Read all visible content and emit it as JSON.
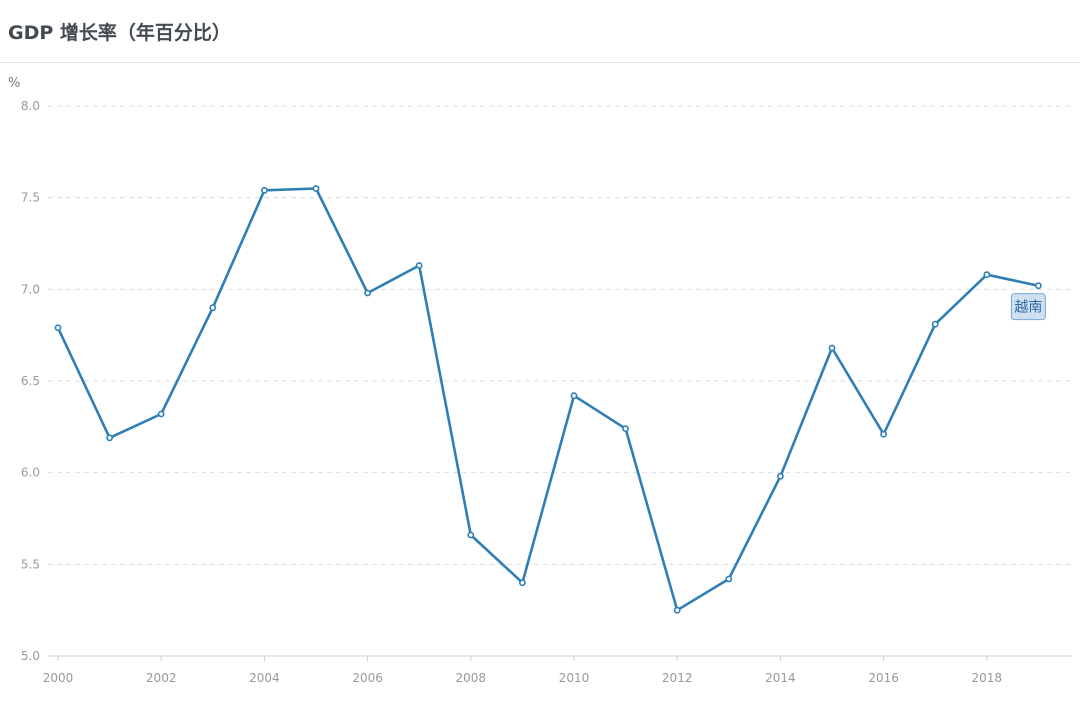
{
  "header": {
    "title": "GDP 增长率（年百分比）"
  },
  "chart_data": {
    "type": "line",
    "title": "GDP 增长率（年百分比）",
    "ylabel": "%",
    "xlabel": "",
    "ylim": [
      5.0,
      8.0
    ],
    "yticks": [
      "8.0",
      "7.5",
      "7.0",
      "6.5",
      "6.0",
      "5.5",
      "5.0"
    ],
    "xticks": [
      "2000",
      "2002",
      "2004",
      "2006",
      "2008",
      "2010",
      "2012",
      "2014",
      "2016",
      "2018"
    ],
    "x": [
      2000,
      2001,
      2002,
      2003,
      2004,
      2005,
      2006,
      2007,
      2008,
      2009,
      2010,
      2011,
      2012,
      2013,
      2014,
      2015,
      2016,
      2017,
      2018,
      2019
    ],
    "series": [
      {
        "name": "越南",
        "color": "#2f7fb6",
        "values": [
          6.79,
          6.19,
          6.32,
          6.9,
          7.54,
          7.55,
          6.98,
          7.13,
          5.66,
          5.4,
          6.42,
          6.24,
          5.25,
          5.42,
          5.98,
          6.68,
          6.21,
          6.81,
          7.08,
          7.02
        ]
      }
    ],
    "grid": true,
    "gridline_style": "dashed",
    "legend_placement": "inline-end-label"
  }
}
